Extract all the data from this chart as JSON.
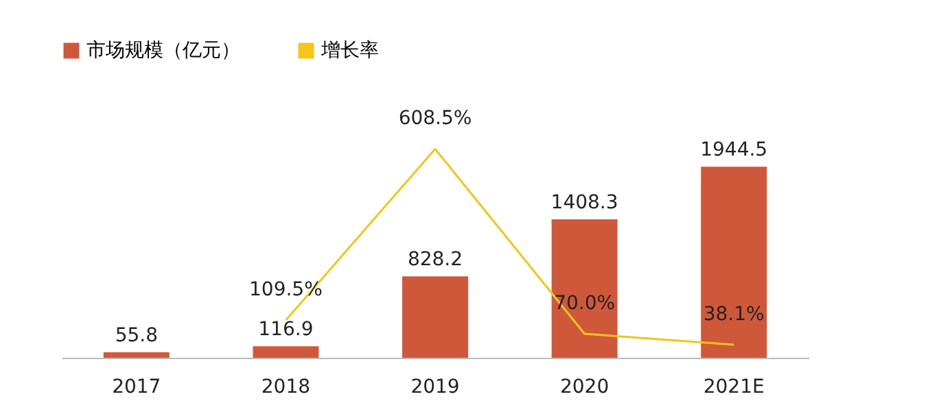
{
  "chart_data": {
    "type": "bar",
    "categories": [
      "2017",
      "2018",
      "2019",
      "2020",
      "2021E"
    ],
    "legend": "top",
    "grid": false,
    "tick_labels": "x",
    "series": [
      {
        "name": "市场规模（亿元）",
        "color": "#d0583a",
        "values": [
          55.8,
          116.9,
          828.2,
          1408.3,
          1944.5
        ],
        "value_labels": [
          "55.8",
          "116.9",
          "828.2",
          "1408.3",
          "1944.5"
        ]
      },
      {
        "name": "增长率",
        "type": "line",
        "axis": "y2",
        "color": "#f5c518",
        "values": [
          null,
          109.5,
          608.5,
          70.0,
          38.1
        ],
        "value_labels": [
          null,
          "109.5%",
          "608.5%",
          "70.0%",
          "38.1%"
        ]
      }
    ]
  }
}
